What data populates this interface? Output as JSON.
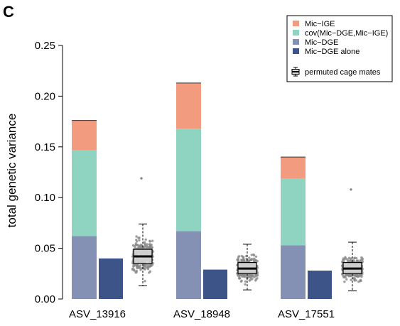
{
  "panel_label": "C",
  "colors": {
    "mic_ige": "#F29B7F",
    "cov": "#8FD3C1",
    "mic_dge": "#8491B4",
    "mic_dge_alone": "#3C5488",
    "jitter": "#888888",
    "box_fill": "#d9d9d9",
    "box_stroke": "#000000"
  },
  "legend": {
    "items": [
      {
        "label": "Mic−IGE",
        "color_key": "mic_ige"
      },
      {
        "label": "cov(Mic−DGE,Mic−IGE)",
        "color_key": "cov"
      },
      {
        "label": "Mic−DGE",
        "color_key": "mic_dge"
      },
      {
        "label": "Mic−DGE alone",
        "color_key": "mic_dge_alone"
      }
    ],
    "box_label": "permuted cage mates"
  },
  "chart_data": {
    "type": "bar",
    "title": "",
    "xlabel": "",
    "ylabel": "total genetic variance",
    "ylim": [
      0,
      0.25
    ],
    "yticks": [
      "0.00",
      "0.05",
      "0.10",
      "0.15",
      "0.20",
      "0.25"
    ],
    "grid": false,
    "legend_position": "top-right",
    "categories": [
      "ASV_13916",
      "ASV_18948",
      "ASV_17551"
    ],
    "stacked_series": [
      {
        "name": "Mic−DGE",
        "values": [
          0.062,
          0.067,
          0.053
        ]
      },
      {
        "name": "cov(Mic−DGE,Mic−IGE)",
        "values": [
          0.085,
          0.101,
          0.066
        ]
      },
      {
        "name": "Mic−IGE",
        "values": [
          0.029,
          0.045,
          0.021
        ]
      }
    ],
    "alone_series": {
      "name": "Mic−DGE alone",
      "values": [
        0.04,
        0.029,
        0.028
      ]
    },
    "permuted_boxplots": {
      "name": "permuted cage mates",
      "stats": [
        {
          "min": 0.013,
          "q1": 0.035,
          "median": 0.042,
          "q3": 0.049,
          "max": 0.074,
          "outliers": [
            0.119
          ]
        },
        {
          "min": 0.009,
          "q1": 0.025,
          "median": 0.03,
          "q3": 0.036,
          "max": 0.054,
          "outliers": []
        },
        {
          "min": 0.008,
          "q1": 0.025,
          "median": 0.03,
          "q3": 0.036,
          "max": 0.056,
          "outliers": [
            0.108
          ]
        }
      ]
    }
  }
}
